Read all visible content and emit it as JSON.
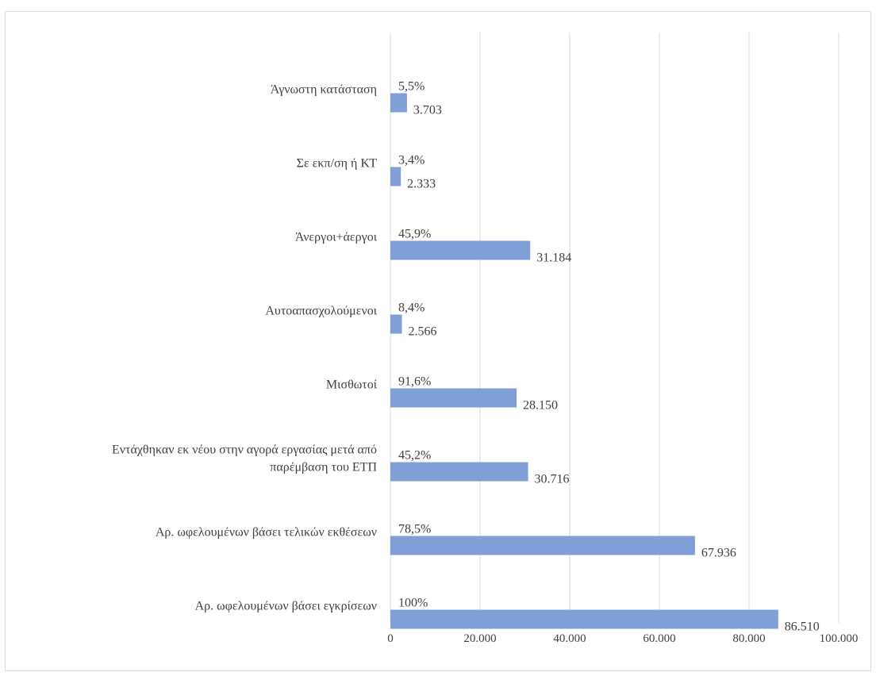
{
  "chart_data": {
    "type": "bar",
    "orientation": "horizontal",
    "title": "",
    "xlabel": "",
    "ylabel": "",
    "xlim": [
      0,
      100000
    ],
    "x_ticks": [
      {
        "value": 0,
        "label": "0"
      },
      {
        "value": 20000,
        "label": "20.000"
      },
      {
        "value": 40000,
        "label": "40.000"
      },
      {
        "value": 60000,
        "label": "60.000"
      },
      {
        "value": 80000,
        "label": "80.000"
      },
      {
        "value": 100000,
        "label": "100.000"
      }
    ],
    "grid": "vertical",
    "bar_color": "#7f9fd6",
    "categories": [
      "Αρ. ωφελουμένων βάσει εγκρίσεων",
      "Αρ. ωφελουμένων βάσει τελικών εκθέσεων",
      "Εντάχθηκαν εκ νέου στην αγορά εργασίας μετά από παρέμβαση του ΕΤΠ",
      "Μισθωτοί",
      "Αυτοαπασχολούμενοι",
      "Άνεργοι+άεργοι",
      "Σε εκπ/ση ή ΚΤ",
      "Άγνωστη κατάσταση"
    ],
    "category_lines": [
      [
        "Αρ. ωφελουμένων βάσει εγκρίσεων"
      ],
      [
        "Αρ. ωφελουμένων βάσει τελικών εκθέσεων"
      ],
      [
        "Εντάχθηκαν εκ νέου στην αγορά εργασίας μετά από",
        "παρέμβαση του ΕΤΠ"
      ],
      [
        "Μισθωτοί"
      ],
      [
        "Αυτοαπασχολούμενοι"
      ],
      [
        "Άνεργοι+άεργοι"
      ],
      [
        "Σε εκπ/ση ή ΚΤ"
      ],
      [
        "Άγνωστη κατάσταση"
      ]
    ],
    "values": [
      86510,
      67936,
      30716,
      28150,
      2566,
      31184,
      2333,
      3703
    ],
    "value_labels": [
      "86.510",
      "67.936",
      "30.716",
      "28.150",
      "2.566",
      "31.184",
      "2.333",
      "3.703"
    ],
    "percent_labels": [
      "100%",
      "78,5%",
      "45,2%",
      "91,6%",
      "8,4%",
      "45,9%",
      "3,4%",
      "5,5%"
    ]
  }
}
